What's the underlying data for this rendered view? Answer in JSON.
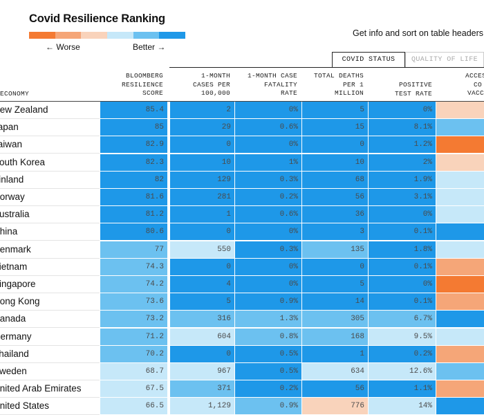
{
  "header": {
    "title": "Covid Resilience Ranking",
    "legend_worse": "← Worse",
    "legend_better": "Better →",
    "legend_colors": [
      "#f47a32",
      "#f5a678",
      "#f9d3bb",
      "#c6e8f9",
      "#6cc1f0",
      "#1e98e8"
    ],
    "info": "Get info and sort on table headers"
  },
  "tabs": [
    {
      "label": "COVID STATUS",
      "active": true
    },
    {
      "label": "QUALITY OF LIFE",
      "active": false
    }
  ],
  "colors": {
    "dark_blue": "#1e98e8",
    "medium_blue": "#6cc1f0",
    "light_blue": "#c6e8f9",
    "peach": "#f9d3bb",
    "light_orange": "#f5a678",
    "orange": "#f47a32"
  },
  "chart_data": {
    "type": "table",
    "title": "Covid Resilience Ranking",
    "columns": [
      {
        "key": "economy",
        "label": "ECONOMY"
      },
      {
        "key": "score",
        "label": "BLOOMBERG\nRESILIENCE\nSCORE"
      },
      {
        "key": "cases",
        "label": "1-MONTH\nCASES PER\n100,000"
      },
      {
        "key": "cfr",
        "label": "1-MONTH CASE\nFATALITY\nRATE"
      },
      {
        "key": "deaths",
        "label": "TOTAL DEATHS\nPER 1\nMILLION"
      },
      {
        "key": "positive",
        "label": "POSITIVE\nTEST RATE"
      },
      {
        "key": "vaccine",
        "label": "ACCESS\nCO\nVACCI"
      }
    ],
    "rows": [
      {
        "economy": "New Zealand",
        "score": "85.4",
        "cases": "2",
        "cfr": "0%",
        "deaths": "5",
        "positive": "0%",
        "vaccine": ""
      },
      {
        "economy": "Japan",
        "score": "85",
        "cases": "29",
        "cfr": "0.6%",
        "deaths": "15",
        "positive": "8.1%",
        "vaccine": ""
      },
      {
        "economy": "Taiwan",
        "score": "82.9",
        "cases": "0",
        "cfr": "0%",
        "deaths": "0",
        "positive": "1.2%",
        "vaccine": ""
      },
      {
        "economy": "South Korea",
        "score": "82.3",
        "cases": "10",
        "cfr": "1%",
        "deaths": "10",
        "positive": "2%",
        "vaccine": ""
      },
      {
        "economy": "Finland",
        "score": "82",
        "cases": "129",
        "cfr": "0.3%",
        "deaths": "68",
        "positive": "1.9%",
        "vaccine": ""
      },
      {
        "economy": "Norway",
        "score": "81.6",
        "cases": "281",
        "cfr": "0.2%",
        "deaths": "56",
        "positive": "3.1%",
        "vaccine": ""
      },
      {
        "economy": "Australia",
        "score": "81.2",
        "cases": "1",
        "cfr": "0.6%",
        "deaths": "36",
        "positive": "0%",
        "vaccine": ""
      },
      {
        "economy": "China",
        "score": "80.6",
        "cases": "0",
        "cfr": "0%",
        "deaths": "3",
        "positive": "0.1%",
        "vaccine": ""
      },
      {
        "economy": "Denmark",
        "score": "77",
        "cases": "550",
        "cfr": "0.3%",
        "deaths": "135",
        "positive": "1.8%",
        "vaccine": ""
      },
      {
        "economy": "Vietnam",
        "score": "74.3",
        "cases": "0",
        "cfr": "0%",
        "deaths": "0",
        "positive": "0.1%",
        "vaccine": ""
      },
      {
        "economy": "Singapore",
        "score": "74.2",
        "cases": "4",
        "cfr": "0%",
        "deaths": "5",
        "positive": "0%",
        "vaccine": ""
      },
      {
        "economy": "Hong Kong",
        "score": "73.6",
        "cases": "5",
        "cfr": "0.9%",
        "deaths": "14",
        "positive": "0.1%",
        "vaccine": ""
      },
      {
        "economy": "Canada",
        "score": "73.2",
        "cases": "316",
        "cfr": "1.3%",
        "deaths": "305",
        "positive": "6.7%",
        "vaccine": ""
      },
      {
        "economy": "Germany",
        "score": "71.2",
        "cases": "604",
        "cfr": "0.8%",
        "deaths": "168",
        "positive": "9.5%",
        "vaccine": ""
      },
      {
        "economy": "Thailand",
        "score": "70.2",
        "cases": "0",
        "cfr": "0.5%",
        "deaths": "1",
        "positive": "0.2%",
        "vaccine": ""
      },
      {
        "economy": "Sweden",
        "score": "68.7",
        "cases": "967",
        "cfr": "0.5%",
        "deaths": "634",
        "positive": "12.6%",
        "vaccine": ""
      },
      {
        "economy": "United Arab Emirates",
        "score": "67.5",
        "cases": "371",
        "cfr": "0.2%",
        "deaths": "56",
        "positive": "1.1%",
        "vaccine": ""
      },
      {
        "economy": "United States",
        "score": "66.5",
        "cases": "1,129",
        "cfr": "0.9%",
        "deaths": "776",
        "positive": "14%",
        "vaccine": ""
      }
    ],
    "cell_colors": [
      [
        "dark_blue",
        "dark_blue",
        "dark_blue",
        "dark_blue",
        "dark_blue",
        "peach"
      ],
      [
        "dark_blue",
        "dark_blue",
        "dark_blue",
        "dark_blue",
        "dark_blue",
        "medium_blue"
      ],
      [
        "dark_blue",
        "dark_blue",
        "dark_blue",
        "dark_blue",
        "dark_blue",
        "orange"
      ],
      [
        "dark_blue",
        "dark_blue",
        "dark_blue",
        "dark_blue",
        "dark_blue",
        "peach"
      ],
      [
        "dark_blue",
        "dark_blue",
        "dark_blue",
        "dark_blue",
        "dark_blue",
        "light_blue"
      ],
      [
        "dark_blue",
        "dark_blue",
        "dark_blue",
        "dark_blue",
        "dark_blue",
        "light_blue"
      ],
      [
        "dark_blue",
        "dark_blue",
        "dark_blue",
        "dark_blue",
        "dark_blue",
        "light_blue"
      ],
      [
        "dark_blue",
        "dark_blue",
        "dark_blue",
        "dark_blue",
        "dark_blue",
        "dark_blue"
      ],
      [
        "medium_blue",
        "light_blue",
        "dark_blue",
        "medium_blue",
        "dark_blue",
        "light_blue"
      ],
      [
        "medium_blue",
        "dark_blue",
        "dark_blue",
        "dark_blue",
        "dark_blue",
        "light_orange"
      ],
      [
        "medium_blue",
        "dark_blue",
        "dark_blue",
        "dark_blue",
        "dark_blue",
        "orange"
      ],
      [
        "medium_blue",
        "dark_blue",
        "dark_blue",
        "dark_blue",
        "dark_blue",
        "light_orange"
      ],
      [
        "medium_blue",
        "medium_blue",
        "medium_blue",
        "medium_blue",
        "medium_blue",
        "dark_blue"
      ],
      [
        "medium_blue",
        "light_blue",
        "medium_blue",
        "medium_blue",
        "light_blue",
        "light_blue"
      ],
      [
        "medium_blue",
        "dark_blue",
        "dark_blue",
        "dark_blue",
        "dark_blue",
        "light_orange"
      ],
      [
        "light_blue",
        "light_blue",
        "dark_blue",
        "light_blue",
        "light_blue",
        "medium_blue"
      ],
      [
        "light_blue",
        "medium_blue",
        "dark_blue",
        "dark_blue",
        "dark_blue",
        "light_orange"
      ],
      [
        "light_blue",
        "light_blue",
        "medium_blue",
        "peach",
        "light_blue",
        "dark_blue"
      ]
    ]
  }
}
